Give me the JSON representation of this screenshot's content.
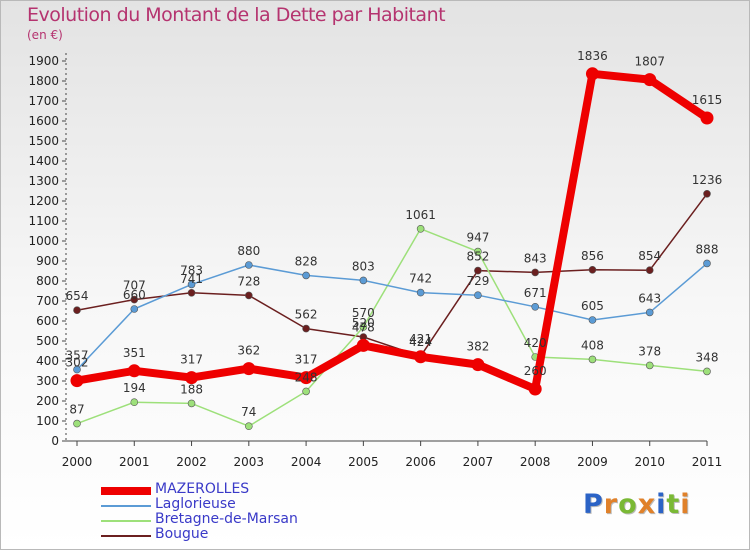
{
  "header": {
    "title": "Evolution du Montant de la Dette par Habitant",
    "subtitle": "(en €)"
  },
  "logo": {
    "letters": [
      "P",
      "r",
      "o",
      "x",
      "i",
      "t",
      "i"
    ],
    "colors": [
      "#2b63c6",
      "#e0812a",
      "#7ab935",
      "#e0812a",
      "#2b63c6",
      "#7ab935",
      "#e0812a"
    ]
  },
  "chart_data": {
    "type": "line",
    "categories": [
      "2000",
      "2001",
      "2002",
      "2003",
      "2004",
      "2005",
      "2006",
      "2007",
      "2008",
      "2009",
      "2010",
      "2011"
    ],
    "ylim": [
      0,
      1900
    ],
    "yticks": [
      0,
      100,
      200,
      300,
      400,
      500,
      600,
      700,
      800,
      900,
      1000,
      1100,
      1200,
      1300,
      1400,
      1500,
      1600,
      1700,
      1800,
      1900
    ],
    "grid": false,
    "legend_position": "bottom-left",
    "series": [
      {
        "name": "Bougue",
        "color": "#6b1f1f",
        "values": [
          654,
          707,
          741,
          728,
          562,
          520,
          424,
          852,
          843,
          856,
          854,
          1236
        ]
      },
      {
        "name": "Bretagne-de-Marsan",
        "color": "#9de07a",
        "values": [
          87,
          194,
          188,
          74,
          248,
          570,
          1061,
          947,
          420,
          408,
          378,
          348
        ]
      },
      {
        "name": "Laglorieuse",
        "color": "#5b9bd5",
        "values": [
          357,
          660,
          783,
          880,
          828,
          803,
          742,
          729,
          671,
          605,
          643,
          888
        ]
      },
      {
        "name": "MAZEROLLES",
        "color": "#ee0000",
        "values": [
          302,
          351,
          317,
          362,
          317,
          478,
          421,
          382,
          260,
          1836,
          1807,
          1615
        ]
      }
    ]
  }
}
